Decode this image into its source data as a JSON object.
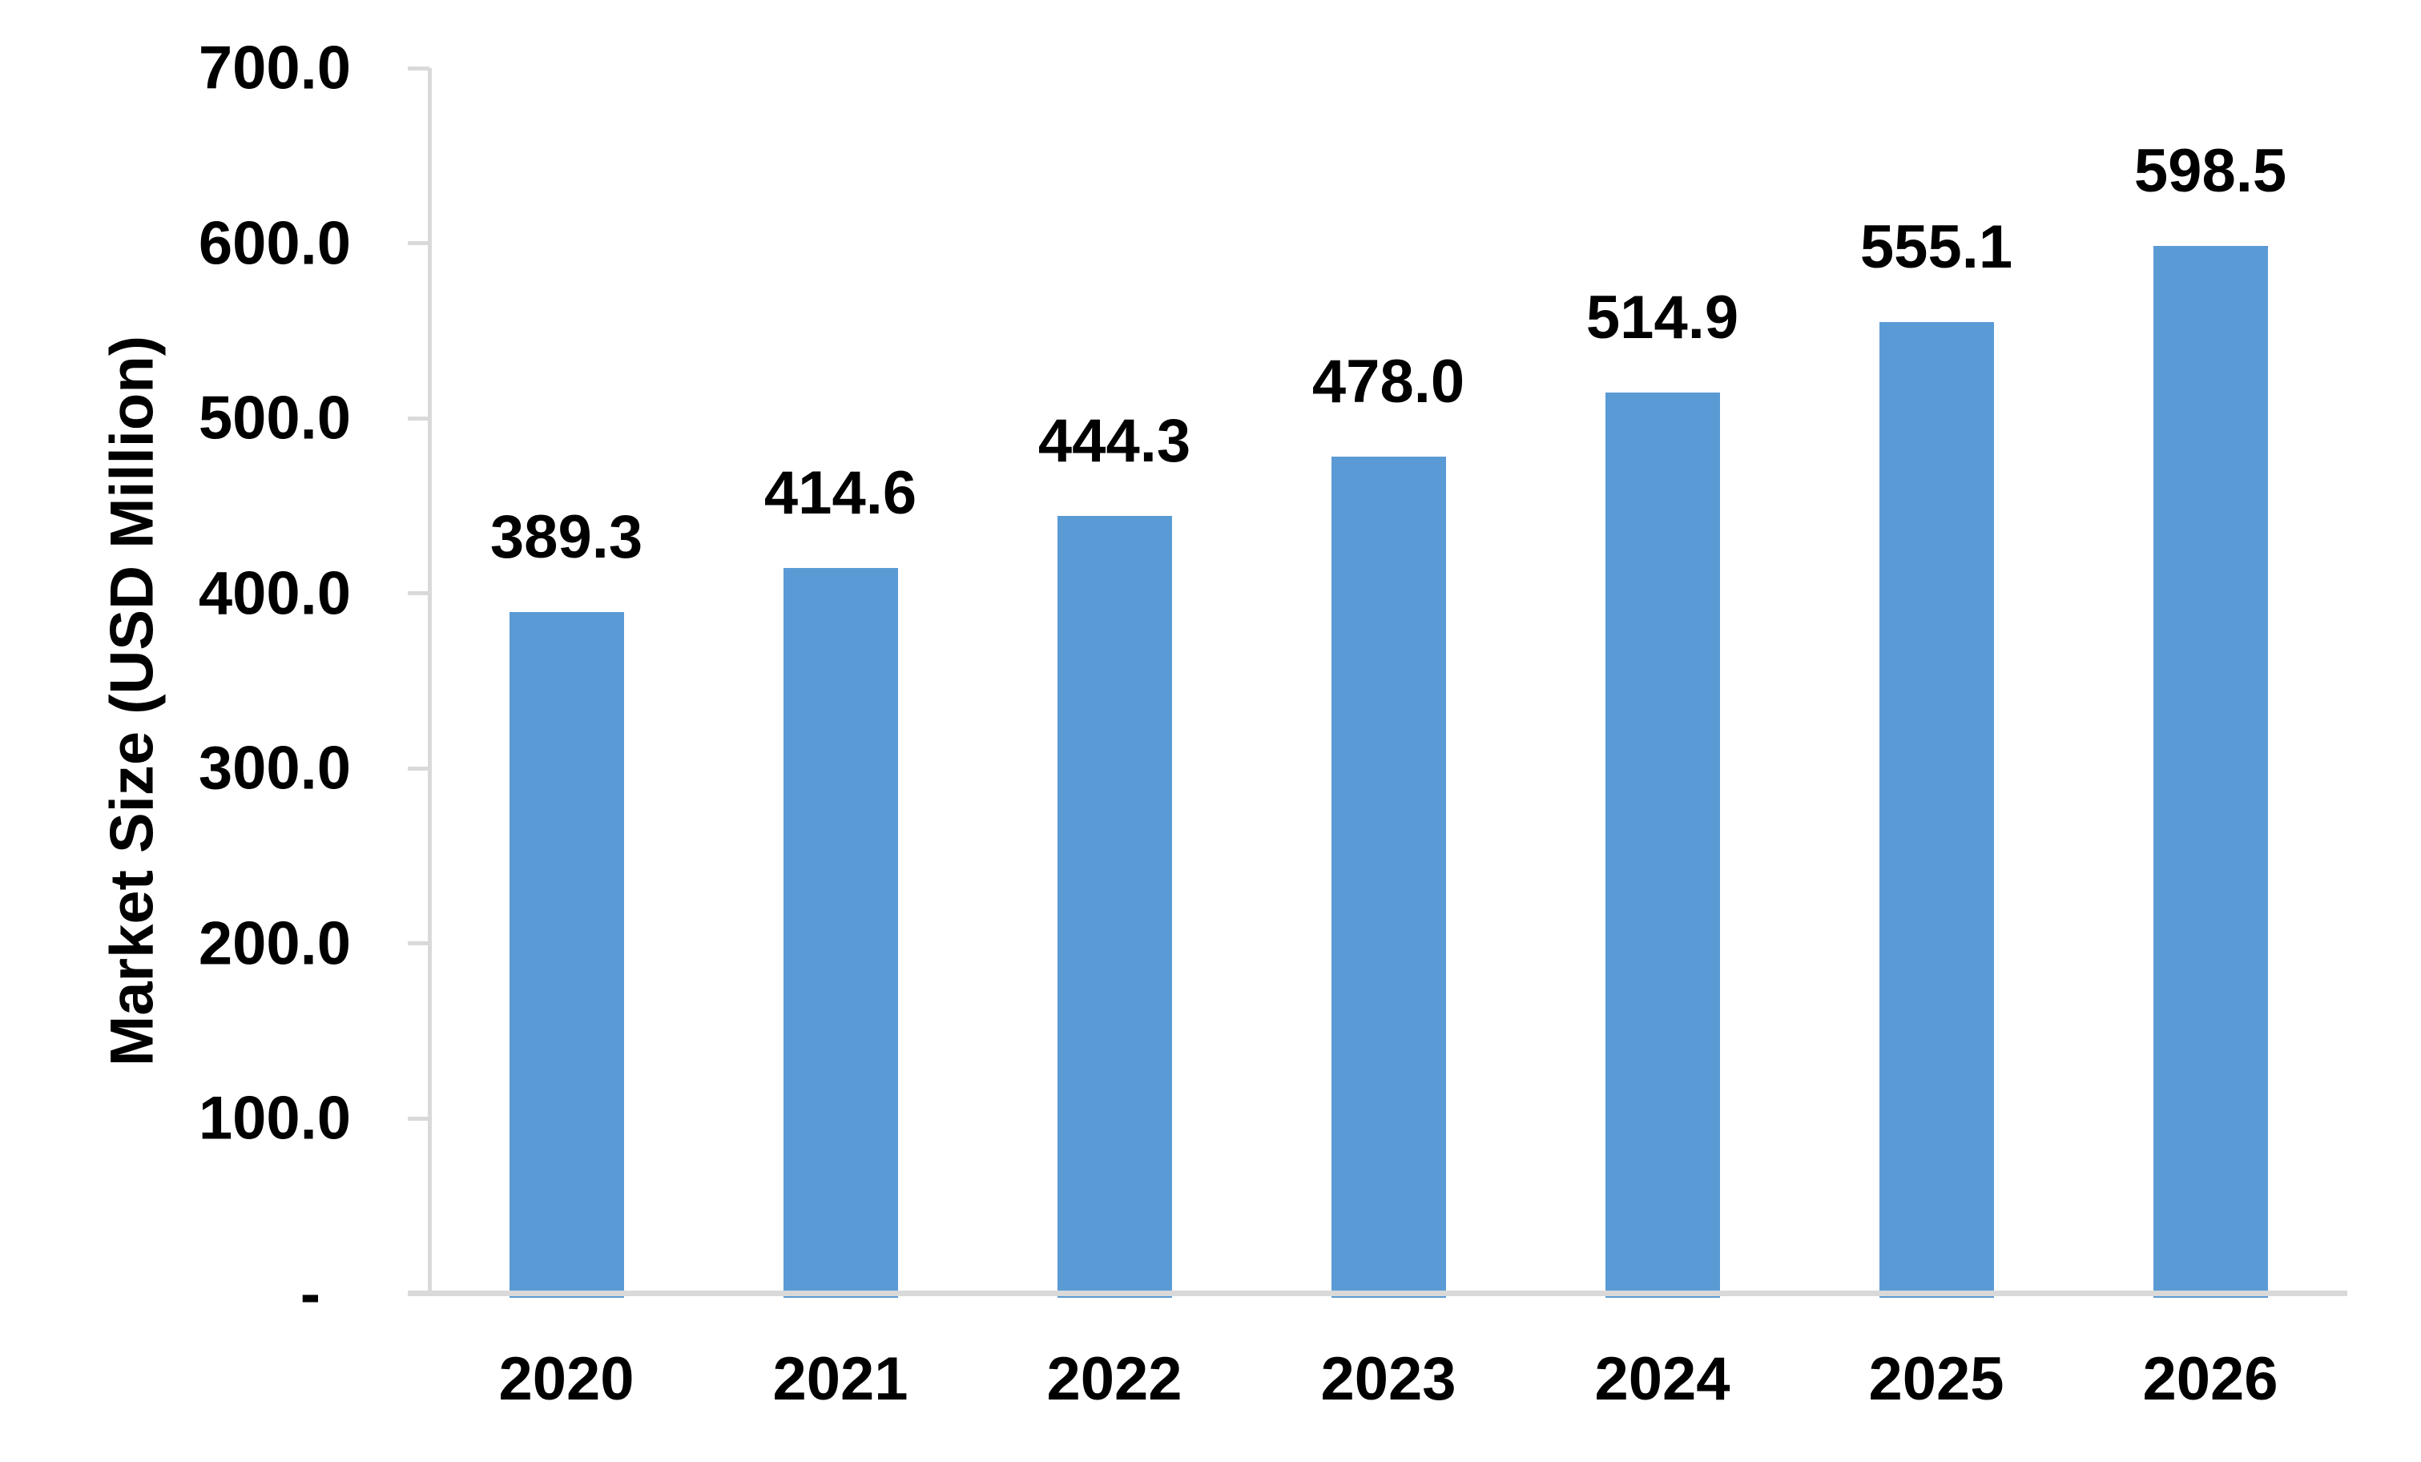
{
  "chart_data": {
    "type": "bar",
    "title": "",
    "categories": [
      "2020",
      "2021",
      "2022",
      "2023",
      "2024",
      "2025",
      "2026"
    ],
    "values": [
      389.3,
      414.6,
      444.3,
      478.0,
      514.9,
      555.1,
      598.5
    ],
    "data_labels": [
      "389.3",
      "414.6",
      "444.3",
      "478.0",
      "514.9",
      "555.1",
      "598.5"
    ],
    "xlabel": "",
    "ylabel": "Market Size (USD Million)",
    "ylim": [
      0,
      700
    ],
    "ytick_interval": 100,
    "ytick_labels": [
      "700.0",
      "600.0",
      "500.0",
      "400.0",
      "300.0",
      "200.0",
      "100.0",
      "-"
    ],
    "grid": false,
    "legend": false,
    "bar_color": "#5B9BD5",
    "axis_color": "#D9D9D9",
    "text_color": "#000000"
  }
}
